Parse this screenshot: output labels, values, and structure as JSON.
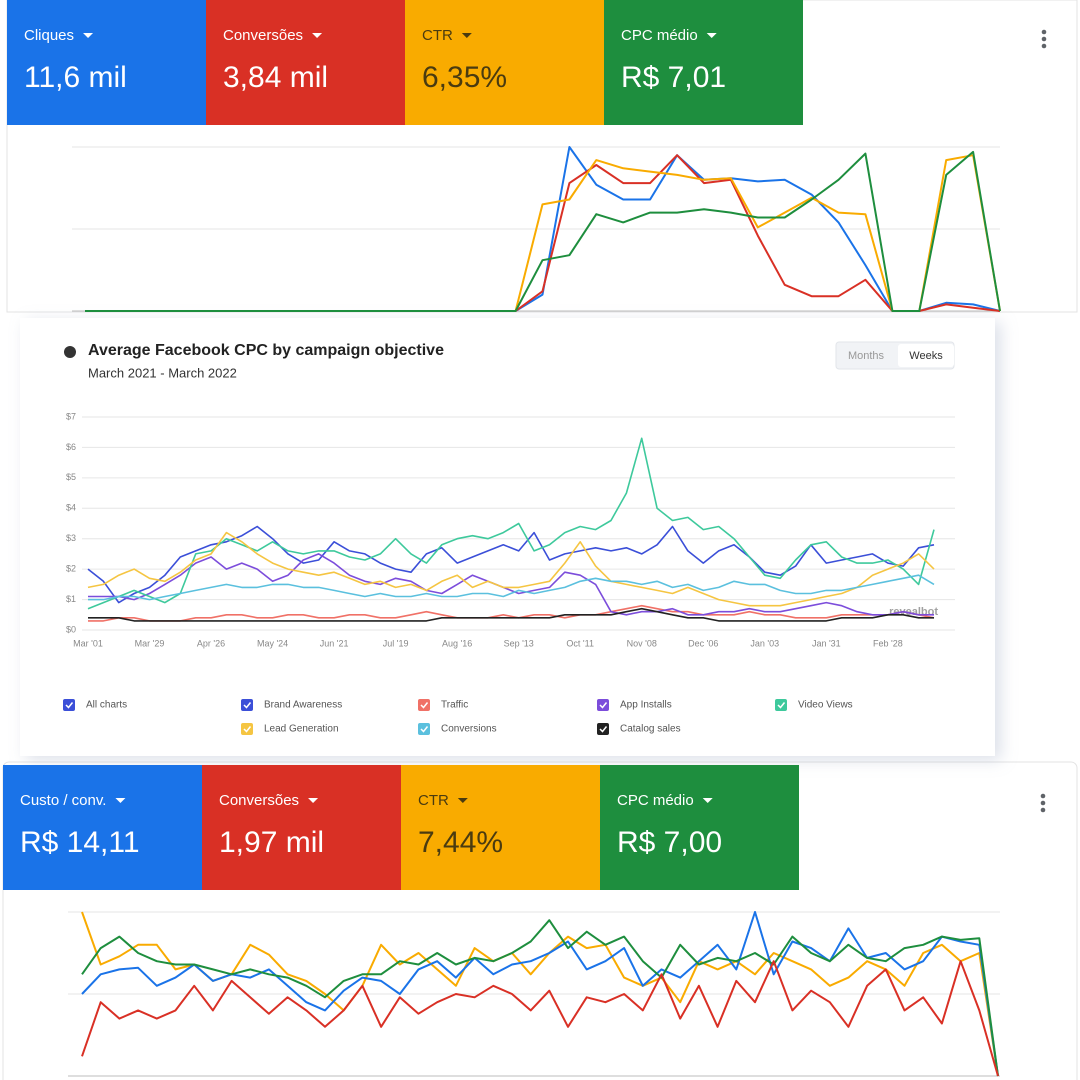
{
  "top_panel": {
    "metrics": [
      {
        "label": "Cliques",
        "value": "11,6 mil",
        "color": "#1a73e8",
        "text_color": "#ffffff"
      },
      {
        "label": "Conversões",
        "value": "3,84 mil",
        "color": "#d93025",
        "text_color": "#ffffff"
      },
      {
        "label": "CTR",
        "value": "6,35%",
        "color": "#f9ab00",
        "text_color": "#4a3b10"
      },
      {
        "label": "CPC médio",
        "value": "R$ 7,01",
        "color": "#1e8e3e",
        "text_color": "#ffffff"
      }
    ]
  },
  "bottom_panel": {
    "metrics": [
      {
        "label": "Custo / conv.",
        "value": "R$ 14,11",
        "color": "#1a73e8",
        "text_color": "#ffffff"
      },
      {
        "label": "Conversões",
        "value": "1,97 mil",
        "color": "#d93025",
        "text_color": "#ffffff"
      },
      {
        "label": "CTR",
        "value": "7,44%",
        "color": "#f9ab00",
        "text_color": "#4a3b10"
      },
      {
        "label": "CPC médio",
        "value": "R$ 7,00",
        "color": "#1e8e3e",
        "text_color": "#ffffff"
      }
    ]
  },
  "chart_data": [
    {
      "type": "line",
      "ylim": [
        0,
        100
      ],
      "yticks": [
        0,
        50,
        100
      ],
      "grid": true,
      "series": [
        {
          "color": "#1a73e8",
          "values": [
            0,
            0,
            0,
            0,
            0,
            0,
            0,
            0,
            0,
            0,
            0,
            0,
            0,
            0,
            0,
            0,
            0,
            10,
            100,
            77,
            68,
            68,
            95,
            80,
            81,
            79,
            80,
            71,
            54,
            28,
            0,
            0,
            5,
            4,
            0
          ]
        },
        {
          "color": "#d93025",
          "values": [
            0,
            0,
            0,
            0,
            0,
            0,
            0,
            0,
            0,
            0,
            0,
            0,
            0,
            0,
            0,
            0,
            0,
            12,
            78,
            89,
            78,
            78,
            95,
            78,
            80,
            46,
            16,
            9,
            9,
            19,
            0,
            0,
            4,
            2,
            0
          ]
        },
        {
          "color": "#f9ab00",
          "values": [
            0,
            0,
            0,
            0,
            0,
            0,
            0,
            0,
            0,
            0,
            0,
            0,
            0,
            0,
            0,
            0,
            0,
            65,
            68,
            92,
            87,
            85,
            83,
            80,
            81,
            51,
            60,
            69,
            60,
            59,
            0,
            0,
            92,
            95,
            0
          ]
        },
        {
          "color": "#1e8e3e",
          "values": [
            0,
            0,
            0,
            0,
            0,
            0,
            0,
            0,
            0,
            0,
            0,
            0,
            0,
            0,
            0,
            0,
            0,
            31,
            34,
            59,
            54,
            60,
            60,
            62,
            60,
            57,
            57,
            68,
            80,
            96,
            0,
            0,
            83,
            97,
            0
          ]
        }
      ]
    },
    {
      "type": "line",
      "title": "Average Facebook CPC by campaign objective",
      "subtitle": "March 2021 - March 2022",
      "tabs": [
        "Months",
        "Weeks"
      ],
      "active_tab": 1,
      "watermark": "revealbot",
      "legend_all": {
        "label": "All charts",
        "color": "#3b4fd8"
      },
      "ylim": [
        0,
        7
      ],
      "yticks": [
        {
          "value": 0,
          "label": "$0"
        },
        {
          "value": 1,
          "label": "$1"
        },
        {
          "value": 2,
          "label": "$2"
        },
        {
          "value": 3,
          "label": "$3"
        },
        {
          "value": 4,
          "label": "$4"
        },
        {
          "value": 5,
          "label": "$5"
        },
        {
          "value": 6,
          "label": "$6"
        },
        {
          "value": 7,
          "label": "$7"
        }
      ],
      "grid": true,
      "categories": [
        "Mar '01",
        null,
        null,
        null,
        "Mar '29",
        null,
        null,
        null,
        "Apr '26",
        null,
        null,
        null,
        "May '24",
        null,
        null,
        null,
        "Jun '21",
        null,
        null,
        null,
        "Jul '19",
        null,
        null,
        null,
        "Aug '16",
        null,
        null,
        null,
        "Sep '13",
        null,
        null,
        null,
        "Oct '11",
        null,
        null,
        null,
        "Nov '08",
        null,
        null,
        null,
        "Dec '06",
        null,
        null,
        null,
        "Jan '03",
        null,
        null,
        null,
        "Jan '31",
        null,
        null,
        null,
        "Feb '28",
        null,
        null,
        null
      ],
      "series": [
        {
          "name": "Brand Awareness",
          "color": "#3b4fd8",
          "values": [
            2.0,
            1.6,
            0.9,
            1.2,
            1.4,
            1.8,
            2.4,
            2.6,
            2.8,
            2.9,
            3.1,
            3.4,
            3.0,
            2.5,
            2.2,
            2.3,
            2.9,
            2.6,
            2.5,
            2.2,
            2.0,
            1.9,
            2.5,
            2.7,
            2.2,
            2.4,
            2.6,
            2.8,
            2.6,
            3.2,
            2.3,
            2.5,
            2.6,
            2.7,
            2.6,
            2.7,
            2.5,
            2.8,
            3.4,
            2.6,
            2.2,
            2.6,
            2.8,
            2.4,
            1.9,
            1.8,
            2.1,
            2.8,
            2.2,
            2.3,
            2.4,
            2.5,
            2.2,
            2.1,
            2.7,
            2.8
          ]
        },
        {
          "name": "Traffic",
          "color": "#f07167",
          "values": [
            0.3,
            0.3,
            0.4,
            0.4,
            0.3,
            0.3,
            0.3,
            0.4,
            0.4,
            0.5,
            0.5,
            0.4,
            0.4,
            0.5,
            0.5,
            0.4,
            0.4,
            0.5,
            0.5,
            0.4,
            0.4,
            0.5,
            0.6,
            0.5,
            0.4,
            0.4,
            0.4,
            0.5,
            0.4,
            0.5,
            0.5,
            0.4,
            0.5,
            0.5,
            0.6,
            0.7,
            0.8,
            0.7,
            0.6,
            0.6,
            0.5,
            0.5,
            0.5,
            0.6,
            0.5,
            0.5,
            0.4,
            0.4,
            0.4,
            0.5,
            0.5,
            0.5,
            0.5,
            0.6,
            0.5,
            0.4
          ]
        },
        {
          "name": "App Installs",
          "color": "#7c4ddb",
          "values": [
            1.1,
            1.1,
            1.1,
            1.0,
            1.2,
            1.5,
            1.8,
            2.2,
            2.4,
            2.0,
            2.2,
            2.0,
            1.6,
            1.8,
            2.3,
            2.5,
            2.2,
            1.8,
            1.6,
            1.5,
            1.7,
            1.6,
            1.3,
            1.2,
            1.5,
            1.8,
            1.6,
            1.4,
            1.2,
            1.3,
            1.4,
            1.9,
            1.8,
            1.5,
            0.6,
            0.5,
            0.6,
            0.6,
            0.7,
            0.5,
            0.5,
            0.6,
            0.6,
            0.7,
            0.6,
            0.6,
            0.7,
            0.8,
            0.9,
            0.8,
            0.6,
            0.5,
            0.5,
            0.6,
            0.5,
            0.5
          ]
        },
        {
          "name": "Video Views",
          "color": "#3ec99c",
          "values": [
            0.7,
            0.9,
            1.1,
            1.3,
            1.1,
            0.9,
            1.2,
            2.5,
            2.6,
            3.0,
            2.8,
            2.6,
            2.9,
            2.6,
            2.5,
            2.6,
            2.6,
            2.4,
            2.3,
            2.5,
            3.0,
            2.5,
            2.2,
            2.8,
            3.0,
            3.1,
            3.0,
            3.2,
            3.5,
            2.6,
            2.8,
            3.2,
            3.4,
            3.3,
            3.6,
            4.5,
            6.3,
            4.0,
            3.6,
            3.7,
            3.3,
            3.4,
            3.0,
            2.4,
            1.8,
            1.7,
            2.3,
            2.8,
            2.9,
            2.4,
            2.2,
            2.2,
            2.3,
            2.0,
            1.5,
            3.3
          ]
        },
        {
          "name": "Lead Generation",
          "color": "#f5c542",
          "values": [
            1.4,
            1.5,
            1.8,
            2.0,
            1.7,
            1.6,
            1.9,
            2.3,
            2.5,
            3.2,
            2.9,
            2.5,
            2.2,
            2.0,
            1.9,
            1.8,
            1.9,
            1.7,
            1.5,
            1.6,
            1.4,
            1.5,
            1.3,
            1.6,
            1.8,
            1.4,
            1.6,
            1.4,
            1.4,
            1.5,
            1.6,
            2.2,
            2.9,
            2.1,
            1.6,
            1.5,
            1.4,
            1.3,
            1.2,
            1.4,
            1.2,
            1.0,
            0.9,
            0.8,
            0.8,
            0.8,
            0.9,
            1.0,
            1.1,
            1.2,
            1.4,
            1.8,
            2.0,
            2.2,
            2.5,
            2.0
          ]
        },
        {
          "name": "Conversions",
          "color": "#5bc0de",
          "values": [
            1.0,
            1.0,
            1.1,
            1.1,
            1.0,
            1.1,
            1.2,
            1.3,
            1.4,
            1.5,
            1.4,
            1.4,
            1.5,
            1.5,
            1.4,
            1.4,
            1.3,
            1.2,
            1.1,
            1.2,
            1.1,
            1.1,
            1.2,
            1.1,
            1.1,
            1.2,
            1.2,
            1.1,
            1.3,
            1.2,
            1.3,
            1.4,
            1.6,
            1.7,
            1.6,
            1.6,
            1.5,
            1.6,
            1.4,
            1.5,
            1.3,
            1.4,
            1.6,
            1.5,
            1.5,
            1.3,
            1.2,
            1.2,
            1.3,
            1.3,
            1.4,
            1.5,
            1.6,
            1.7,
            1.8,
            1.5
          ]
        },
        {
          "name": "Catalog sales",
          "color": "#222222",
          "values": [
            0.4,
            0.4,
            0.4,
            0.3,
            0.3,
            0.3,
            0.3,
            0.3,
            0.3,
            0.3,
            0.3,
            0.3,
            0.3,
            0.3,
            0.3,
            0.3,
            0.3,
            0.3,
            0.3,
            0.3,
            0.3,
            0.3,
            0.3,
            0.4,
            0.4,
            0.4,
            0.4,
            0.4,
            0.4,
            0.4,
            0.4,
            0.5,
            0.5,
            0.5,
            0.5,
            0.6,
            0.7,
            0.6,
            0.5,
            0.4,
            0.4,
            0.3,
            0.3,
            0.3,
            0.3,
            0.3,
            0.3,
            0.3,
            0.3,
            0.4,
            0.4,
            0.4,
            0.5,
            0.5,
            0.4,
            0.4
          ]
        }
      ]
    },
    {
      "type": "line",
      "ylim": [
        0,
        100
      ],
      "yticks": [
        0,
        50,
        100
      ],
      "grid": true,
      "series": [
        {
          "color": "#f9ab00",
          "values": [
            100,
            68,
            73,
            80,
            80,
            65,
            68,
            58,
            62,
            80,
            74,
            62,
            58,
            50,
            40,
            55,
            80,
            68,
            75,
            65,
            55,
            78,
            70,
            75,
            62,
            75,
            85,
            78,
            80,
            60,
            55,
            60,
            45,
            70,
            65,
            70,
            62,
            75,
            70,
            65,
            55,
            60,
            70,
            65,
            55,
            75,
            80,
            70,
            75,
            0
          ]
        },
        {
          "color": "#1a73e8",
          "values": [
            50,
            62,
            65,
            66,
            55,
            60,
            68,
            58,
            62,
            60,
            65,
            55,
            45,
            40,
            52,
            60,
            58,
            50,
            65,
            70,
            60,
            72,
            62,
            68,
            70,
            75,
            82,
            65,
            70,
            78,
            55,
            65,
            60,
            70,
            80,
            65,
            100,
            62,
            82,
            78,
            70,
            90,
            72,
            75,
            65,
            70,
            85,
            82,
            80,
            0
          ]
        },
        {
          "color": "#1e8e3e",
          "values": [
            62,
            78,
            85,
            75,
            70,
            68,
            68,
            65,
            62,
            65,
            62,
            60,
            55,
            48,
            58,
            62,
            62,
            70,
            68,
            75,
            68,
            72,
            70,
            75,
            82,
            95,
            78,
            88,
            80,
            85,
            70,
            60,
            80,
            68,
            72,
            70,
            75,
            68,
            85,
            75,
            70,
            80,
            72,
            70,
            78,
            80,
            85,
            83,
            84,
            0
          ]
        },
        {
          "color": "#d93025",
          "values": [
            12,
            45,
            35,
            40,
            35,
            40,
            55,
            40,
            58,
            48,
            38,
            48,
            40,
            30,
            40,
            55,
            30,
            48,
            38,
            45,
            50,
            48,
            55,
            50,
            40,
            52,
            30,
            48,
            45,
            50,
            40,
            62,
            35,
            55,
            30,
            58,
            45,
            70,
            40,
            52,
            45,
            30,
            55,
            65,
            40,
            48,
            32,
            70,
            40,
            0
          ]
        }
      ]
    }
  ]
}
